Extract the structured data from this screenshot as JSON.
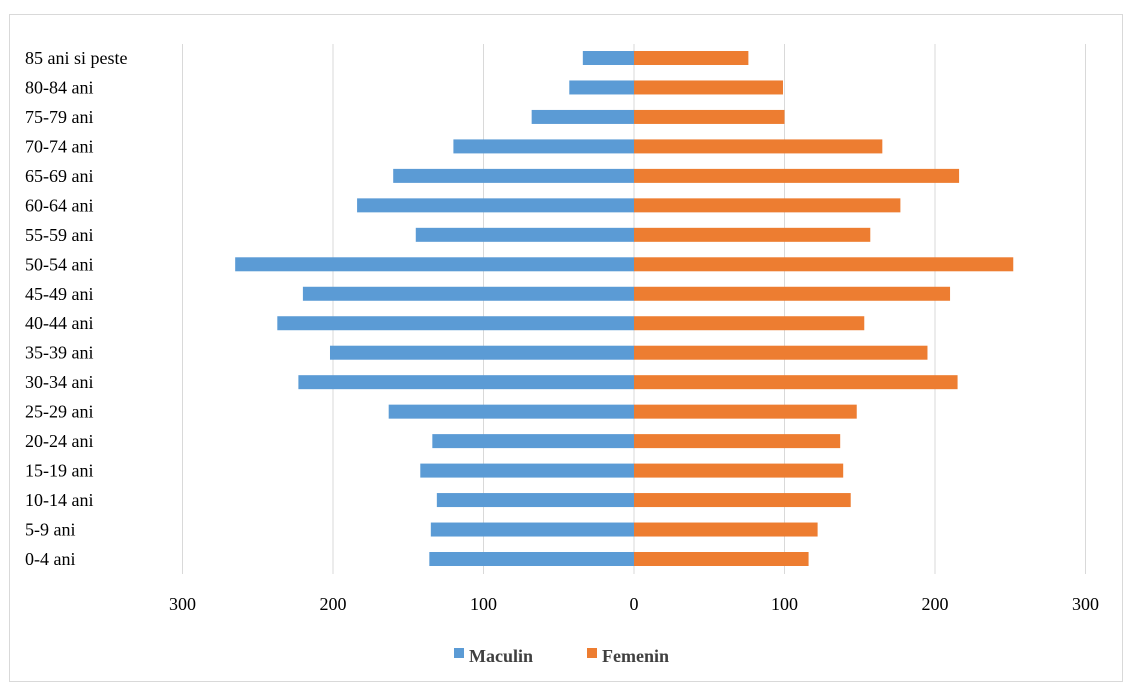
{
  "chart_data": {
    "type": "bar",
    "orientation": "horizontal",
    "subtype": "population-pyramid",
    "categories": [
      "0-4 ani",
      "5-9 ani",
      "10-14 ani",
      "15-19 ani",
      "20-24 ani",
      "25-29 ani",
      "30-34 ani",
      "35-39 ani",
      "40-44 ani",
      "45-49 ani",
      "50-54 ani",
      "55-59 ani",
      "60-64 ani",
      "65-69 ani",
      "70-74 ani",
      "75-79 ani",
      "80-84 ani",
      "85 ani si peste"
    ],
    "series": [
      {
        "name": "Maculin",
        "color": "#5b9bd5",
        "values": [
          136,
          135,
          131,
          142,
          134,
          163,
          223,
          202,
          237,
          220,
          265,
          145,
          184,
          160,
          120,
          68,
          43,
          34
        ]
      },
      {
        "name": "Femenin",
        "color": "#ed7d31",
        "values": [
          116,
          122,
          144,
          139,
          137,
          148,
          215,
          195,
          153,
          210,
          252,
          157,
          177,
          216,
          165,
          100,
          99,
          76
        ]
      }
    ],
    "xlim": [
      -300,
      300
    ],
    "x_ticks": [
      -300,
      -200,
      -100,
      0,
      100,
      200,
      300
    ],
    "x_tick_labels": [
      "300",
      "200",
      "100",
      "0",
      "100",
      "200",
      "300"
    ],
    "grid": "vertical",
    "legend": "bottom-center",
    "title": "",
    "xlabel": "",
    "ylabel": ""
  }
}
